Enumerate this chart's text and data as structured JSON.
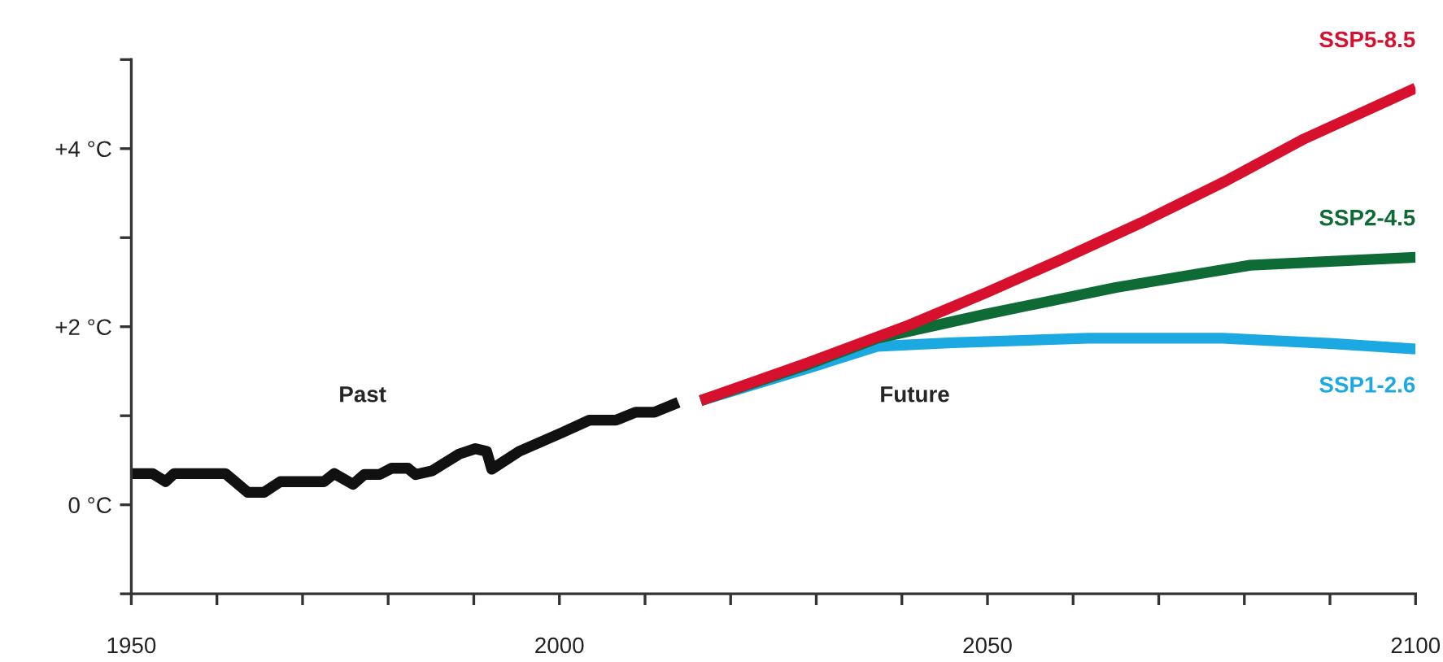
{
  "chart_data": {
    "type": "line",
    "annotations": [
      "Past",
      "Future"
    ],
    "xlim": [
      1950,
      2100
    ],
    "xticks": [
      1950,
      {
        "value": 1960,
        "label": null
      },
      {
        "value": 1970,
        "label": null
      },
      {
        "value": 1980,
        "label": null
      },
      {
        "value": 1990,
        "label": null
      },
      2000,
      {
        "value": 2010,
        "label": null
      },
      {
        "value": 2020,
        "label": null
      },
      {
        "value": 2030,
        "label": null
      },
      {
        "value": 2040,
        "label": null
      },
      2050,
      {
        "value": 2060,
        "label": null
      },
      {
        "value": 2070,
        "label": null
      },
      {
        "value": 2080,
        "label": null
      },
      {
        "value": 2090,
        "label": null
      },
      2100
    ],
    "ylim": [
      -1,
      5
    ],
    "yticks": [
      {
        "value": -1,
        "label": null
      },
      {
        "value": 0,
        "label": "0 °C"
      },
      {
        "value": 1,
        "label": null
      },
      {
        "value": 2,
        "label": "+2 °C"
      },
      {
        "value": 3,
        "label": null
      },
      {
        "value": 4,
        "label": "+4 °C"
      },
      {
        "value": 5,
        "label": null
      }
    ],
    "grid": false,
    "marker": "none",
    "line_style": "solid",
    "series": [
      {
        "color": "#111111",
        "x": [
          1950,
          1952.5,
          1954,
          1955,
          1961,
          1963.6,
          1965.5,
          1967.4,
          1972.5,
          1973.7,
          1975.9,
          1977.2,
          1979,
          1980.4,
          1982.3,
          1983.2,
          1985.1,
          1988.3,
          1990.2,
          1991.5,
          1992.1,
          1995.3,
          2000.3,
          2003.5,
          2006.6,
          2008.9,
          2011.1,
          2013.9
        ],
        "values": [
          0.35,
          0.35,
          0.26,
          0.35,
          0.35,
          0.14,
          0.14,
          0.26,
          0.26,
          0.35,
          0.23,
          0.34,
          0.34,
          0.41,
          0.41,
          0.34,
          0.38,
          0.57,
          0.63,
          0.6,
          0.4,
          0.6,
          0.81,
          0.95,
          0.95,
          1.04,
          1.04,
          1.15
        ]
      },
      {
        "name": "SSP1-2.6",
        "color": "#1ca8e0",
        "x": [
          2016.5,
          2028.9,
          2037.1,
          2046,
          2061.8,
          2077.5,
          2090.3,
          2100
        ],
        "values": [
          1.17,
          1.53,
          1.78,
          1.82,
          1.87,
          1.87,
          1.81,
          1.75
        ]
      },
      {
        "name": "SSP2-4.5",
        "color": "#0f6b35",
        "x": [
          2016.5,
          2028.9,
          2037.1,
          2049.8,
          2065,
          2080.7,
          2100
        ],
        "values": [
          1.17,
          1.57,
          1.87,
          2.14,
          2.44,
          2.69,
          2.78
        ]
      },
      {
        "name": "SSP5-8.5",
        "color": "#d7112d",
        "x": [
          2016.5,
          2028.9,
          2040.9,
          2049.8,
          2058.5,
          2068,
          2077.5,
          2087,
          2100
        ],
        "values": [
          1.17,
          1.59,
          2.02,
          2.38,
          2.75,
          3.17,
          3.62,
          4.11,
          4.68
        ]
      }
    ]
  }
}
